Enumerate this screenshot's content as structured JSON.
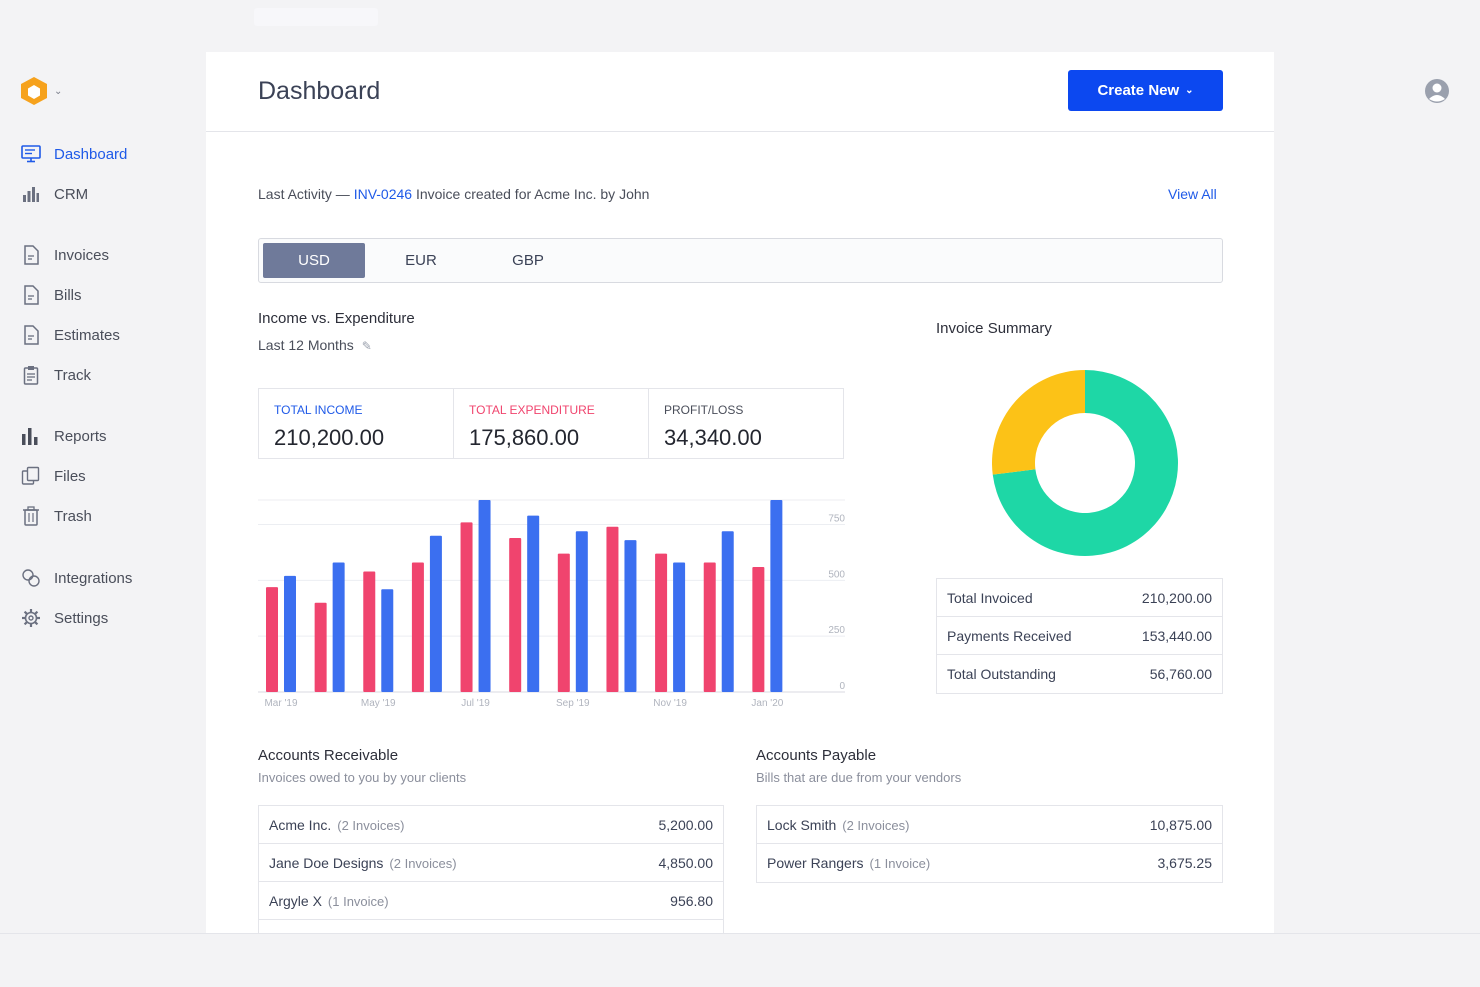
{
  "header": {
    "title": "Dashboard",
    "create_label": "Create New"
  },
  "sidebar": {
    "items": [
      {
        "label": "Dashboard",
        "icon": "monitor-icon"
      },
      {
        "label": "CRM",
        "icon": "crm-chart-icon"
      },
      {
        "label": "Invoices",
        "icon": "document-icon"
      },
      {
        "label": "Bills",
        "icon": "document-icon"
      },
      {
        "label": "Estimates",
        "icon": "document-icon"
      },
      {
        "label": "Track",
        "icon": "clipboard-icon"
      },
      {
        "label": "Reports",
        "icon": "bar-chart-icon"
      },
      {
        "label": "Files",
        "icon": "files-icon"
      },
      {
        "label": "Trash",
        "icon": "trash-icon"
      },
      {
        "label": "Integrations",
        "icon": "link-icon"
      },
      {
        "label": "Settings",
        "icon": "gear-icon"
      }
    ]
  },
  "activity": {
    "prefix": "Last Activity —",
    "link": "INV-0246",
    "text": "Invoice created for Acme Inc. by John",
    "view_all": "View All"
  },
  "currencies": {
    "tabs": [
      "USD",
      "EUR",
      "GBP"
    ],
    "active": "USD"
  },
  "income": {
    "title": "Income vs. Expenditure",
    "period": "Last 12 Months",
    "stats": [
      {
        "label": "TOTAL INCOME",
        "value": "210,200.00",
        "color": "#1f5ae8"
      },
      {
        "label": "TOTAL EXPENDITURE",
        "value": "175,860.00",
        "color": "#f0446e"
      },
      {
        "label": "PROFIT/LOSS",
        "value": "34,340.00",
        "color": "#4a4e5a"
      }
    ]
  },
  "chart_data": {
    "type": "bar",
    "categories": [
      "Mar '19",
      "Apr '19",
      "May '19",
      "Jun '19",
      "Jul '19",
      "Aug '19",
      "Sep '19",
      "Oct '19",
      "Nov '19",
      "Dec '19",
      "Jan '20"
    ],
    "x_tick_labels": [
      "Mar '19",
      "May '19",
      "Jul '19",
      "Sep '19",
      "Nov '19",
      "Jan '20"
    ],
    "y_ticks": [
      "0",
      "250",
      "500",
      "750"
    ],
    "ylim": [
      0,
      860
    ],
    "series": [
      {
        "color": "#f0446e",
        "values": [
          470,
          400,
          540,
          580,
          760,
          690,
          620,
          740,
          620,
          580,
          560
        ]
      },
      {
        "color": "#3b6ff0",
        "values": [
          520,
          580,
          460,
          700,
          860,
          790,
          720,
          680,
          580,
          720,
          860
        ]
      }
    ]
  },
  "invoice_summary": {
    "title": "Invoice Summary",
    "donut": [
      {
        "value": 153440,
        "color": "#1ed7a6"
      },
      {
        "value": 56760,
        "color": "#fcc217"
      }
    ],
    "rows": [
      {
        "label": "Total Invoiced",
        "value": "210,200.00"
      },
      {
        "label": "Payments Received",
        "value": "153,440.00"
      },
      {
        "label": "Total Outstanding",
        "value": "56,760.00"
      }
    ]
  },
  "receivable": {
    "title": "Accounts Receivable",
    "subtitle": "Invoices owed to you by your clients",
    "rows": [
      {
        "name": "Acme Inc.",
        "count": "(2 Invoices)",
        "amount": "5,200.00"
      },
      {
        "name": "Jane Doe Designs",
        "count": "(2 Invoices)",
        "amount": "4,850.00"
      },
      {
        "name": "Argyle X",
        "count": "(1 Invoice)",
        "amount": "956.80"
      }
    ]
  },
  "payable": {
    "title": "Accounts Payable",
    "subtitle": "Bills that are due from your vendors",
    "rows": [
      {
        "name": "Lock Smith",
        "count": "(2 Invoices)",
        "amount": "10,875.00"
      },
      {
        "name": "Power Rangers",
        "count": "(1 Invoice)",
        "amount": "3,675.25"
      }
    ]
  }
}
